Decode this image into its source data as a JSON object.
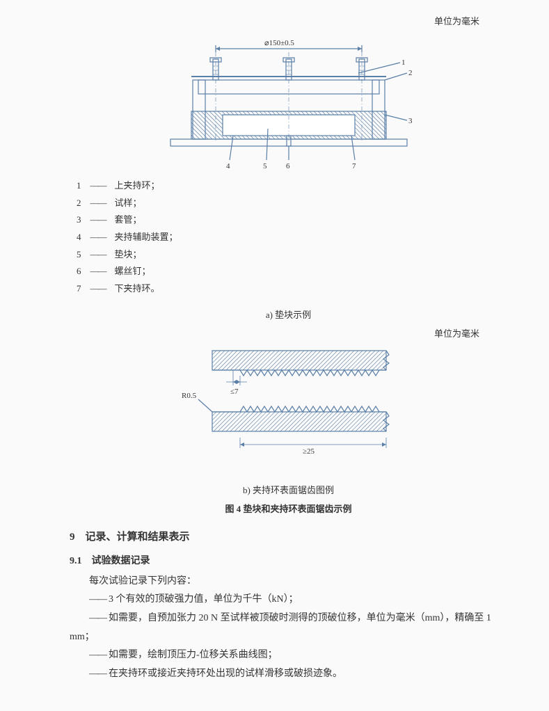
{
  "unit_text_top": "单位为毫米",
  "unit_text_mid": "单位为毫米",
  "diagram_a": {
    "dimension_label": "⌀150±0.5",
    "callouts": [
      "1",
      "2",
      "3",
      "4",
      "5",
      "6",
      "7"
    ],
    "stroke": "#5a7fa8",
    "line_width": 1.2,
    "bolt_color": "#5a7fa8",
    "hatch_spacing": 4
  },
  "legend": [
    {
      "num": "1",
      "text": "上夹持环；"
    },
    {
      "num": "2",
      "text": "试样；"
    },
    {
      "num": "3",
      "text": "套管；"
    },
    {
      "num": "4",
      "text": "夹持辅助装置；"
    },
    {
      "num": "5",
      "text": "垫块；"
    },
    {
      "num": "6",
      "text": "螺丝钉；"
    },
    {
      "num": "7",
      "text": "下夹持环。"
    }
  ],
  "caption_a": "a) 垫块示例",
  "diagram_b": {
    "stroke": "#5a7fa8",
    "hatch_spacing": 5,
    "label_h": "≤7",
    "label_r": "R0.5",
    "label_w": "≥25",
    "line_width": 1.2
  },
  "caption_b1": "b) 夹持环表面锯齿图例",
  "caption_b2": "图 4  垫块和夹持环表面锯齿示例",
  "section9": "9　记录、计算和结果表示",
  "section91": "9.1　试验数据记录",
  "p1": "每次试验记录下列内容：",
  "items": [
    "3 个有效的顶破强力值，单位为千牛（kN）；",
    "如需要，自预加张力 20 N 至试样被顶破时测得的顶破位移，单位为毫米（mm），精确至 1 mm；",
    "如需要，绘制顶压力-位移关系曲线图；",
    "在夹持环或接近夹持环处出现的试样滑移或破损迹象。"
  ]
}
